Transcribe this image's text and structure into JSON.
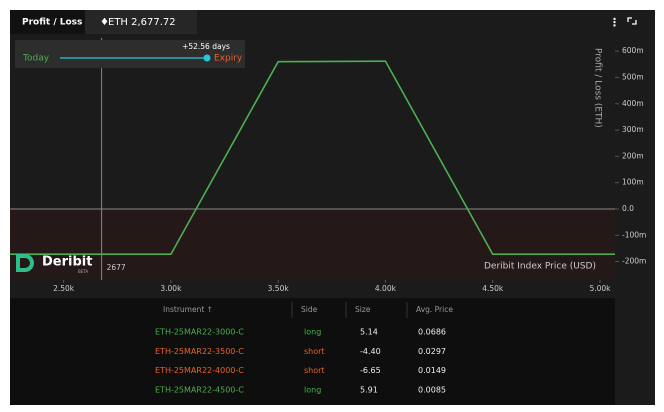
{
  "header": {
    "tab_title": "Profit / Loss",
    "asset": "ETH 2,677.72"
  },
  "chart_data": {
    "type": "line",
    "y_axis_label": "Profit / Loss (ETH)",
    "x_axis_label": "Deribit Index Price (USD)",
    "x": [
      2250,
      3000,
      3500,
      4000,
      4500,
      5070
    ],
    "series": [
      {
        "name": "Expiry",
        "color": "#4caf50",
        "values": [
          -172,
          -172,
          560,
          562,
          -172,
          -172
        ]
      }
    ],
    "xlim": [
      2250,
      5070
    ],
    "xticks": [
      {
        "value": 2500,
        "label": "2.50k"
      },
      {
        "value": 3000,
        "label": "3.00k"
      },
      {
        "value": 3500,
        "label": "3.50k"
      },
      {
        "value": 4000,
        "label": "4.00k"
      },
      {
        "value": 4500,
        "label": "4.50k"
      },
      {
        "value": 5000,
        "label": "5.00k"
      }
    ],
    "ylim": [
      -270,
      650
    ],
    "yticks": [
      {
        "value": 600,
        "label": "600m"
      },
      {
        "value": 500,
        "label": "500m"
      },
      {
        "value": 400,
        "label": "400m"
      },
      {
        "value": 300,
        "label": "300m"
      },
      {
        "value": 200,
        "label": "200m"
      },
      {
        "value": 100,
        "label": "100m"
      },
      {
        "value": 0,
        "label": "0.0"
      },
      {
        "value": -100,
        "label": "-100m"
      },
      {
        "value": -200,
        "label": "-200m"
      }
    ],
    "index_price": 2677,
    "legend": {
      "today": "Today",
      "expiry": "Expiry",
      "days": "+52.56 days",
      "today_color": "#4caf50",
      "line_color": "#26c6da",
      "expiry_color": "#e8622c"
    },
    "brand": "Deribit",
    "brand_sub": "BETA"
  },
  "table": {
    "columns": [
      "Instrument ↑",
      "Side",
      "Size",
      "Avg. Price"
    ],
    "rows": [
      {
        "instrument": "ETH-25MAR22-3000-C",
        "side": "long",
        "size": "5.14",
        "avg_price": "0.0686",
        "color": "#4caf50"
      },
      {
        "instrument": "ETH-25MAR22-3500-C",
        "side": "short",
        "size": "-4.40",
        "avg_price": "0.0297",
        "color": "#e8622c"
      },
      {
        "instrument": "ETH-25MAR22-4000-C",
        "side": "short",
        "size": "-6.65",
        "avg_price": "0.0149",
        "color": "#e8622c"
      },
      {
        "instrument": "ETH-25MAR22-4500-C",
        "side": "long",
        "size": "5.91",
        "avg_price": "0.0085",
        "color": "#4caf50"
      }
    ]
  }
}
